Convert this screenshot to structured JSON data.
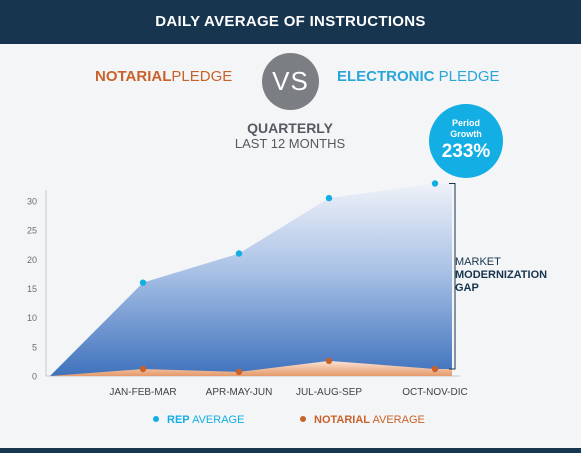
{
  "header": {
    "title": "DAILY AVERAGE OF INSTRUCTIONS"
  },
  "comparison": {
    "left_bold": "NOTARIAL",
    "left_light": "PLEDGE",
    "vs": "VS",
    "right_bold": "ELECTRONIC",
    "right_light": " PLEDGE"
  },
  "subtitle": {
    "line1": "QUARTERLY",
    "line2": "LAST 12 MONTHS"
  },
  "growth": {
    "label_line1": "Period",
    "label_line2": "Growth",
    "value": "233%"
  },
  "gap": {
    "line1": "MARKET",
    "line2": "MODERNIZATION",
    "line3": "GAP"
  },
  "colors": {
    "rep": "#13aee4",
    "notarial": "#c9622a",
    "header": "#17354f"
  },
  "chart_data": {
    "type": "area",
    "categories": [
      "JAN-FEB-MAR",
      "APR-MAY-JUN",
      "JUL-AUG-SEP",
      "OCT-NOV-DIC"
    ],
    "ylim": [
      0,
      30
    ],
    "yticks": [
      0,
      5,
      10,
      15,
      20,
      25,
      30
    ],
    "grid": false,
    "legend_position": "bottom",
    "series": [
      {
        "name_bold": "REP",
        "name_light": "AVERAGE",
        "color": "#13aee4",
        "values": [
          16,
          21,
          30.5,
          33
        ]
      },
      {
        "name_bold": "NOTARIAL",
        "name_light": "AVERAGE",
        "color": "#c9622a",
        "values": [
          1.2,
          0.7,
          2.6,
          1.2
        ]
      }
    ]
  }
}
